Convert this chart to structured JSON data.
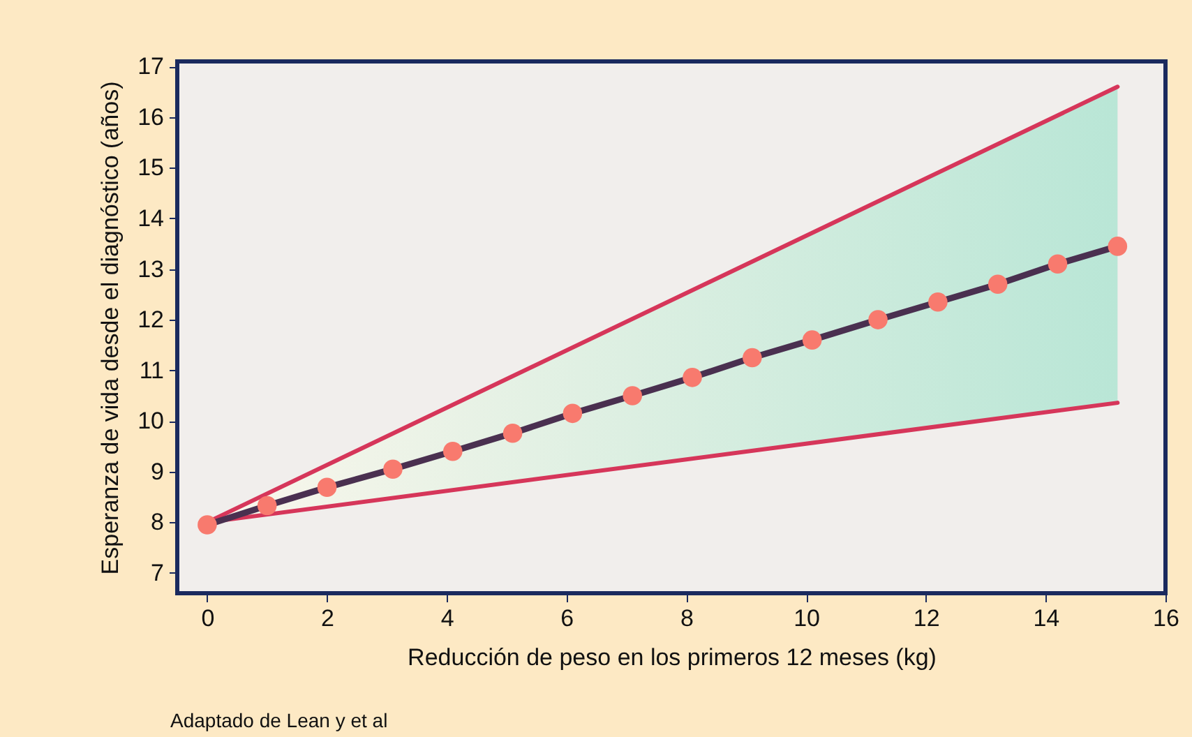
{
  "chart_data": {
    "type": "line",
    "xlabel": "Reducción de peso en los primeros 12 meses (kg)",
    "ylabel": "Esperanza de vida desde el diagnóstico (años)",
    "annotations": [
      "Adaptado de Lean y et al"
    ],
    "xlim": [
      -0.5,
      16
    ],
    "xticks": [
      0,
      2,
      4,
      6,
      8,
      10,
      12,
      14,
      16
    ],
    "ylim": [
      6.6,
      17.1
    ],
    "yticks": [
      7,
      8,
      9,
      10,
      11,
      12,
      13,
      14,
      15,
      16,
      17
    ],
    "line_style": "solid",
    "series": [
      {
        "color": "#d6365a",
        "x": [
          0,
          15.2
        ],
        "values": [
          8,
          16.6
        ],
        "marker": "none"
      },
      {
        "color": "#d6365a",
        "x": [
          0,
          15.2
        ],
        "values": [
          8,
          10.36
        ],
        "marker": "none"
      },
      {
        "color": "#4a3050",
        "marker": "circle",
        "x": [
          0,
          1,
          2,
          3.1,
          4.1,
          5.1,
          6.1,
          7.1,
          8.1,
          9.1,
          10.1,
          11.2,
          12.2,
          13.2,
          14.2,
          15.2
        ],
        "values": [
          7.95,
          8.33,
          8.69,
          9.05,
          9.4,
          9.76,
          10.15,
          10.5,
          10.86,
          11.25,
          11.6,
          12.0,
          12.35,
          12.7,
          13.1,
          13.45
        ],
        "lower": [
          8,
          8.16,
          8.31,
          8.48,
          8.64,
          8.79,
          8.95,
          9.1,
          9.26,
          9.41,
          9.57,
          9.74,
          9.89,
          10.05,
          10.2,
          10.36
        ],
        "upper": [
          8,
          8.57,
          9.13,
          9.75,
          10.32,
          10.89,
          11.45,
          12.02,
          12.58,
          13.15,
          13.72,
          14.34,
          14.91,
          15.47,
          16.04,
          16.6
        ]
      }
    ]
  }
}
